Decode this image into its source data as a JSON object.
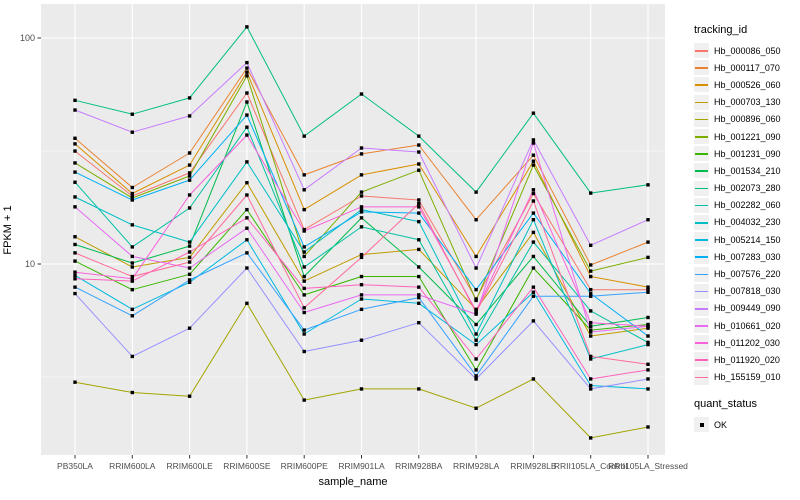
{
  "figure": {
    "y_axis": {
      "title": "FPKM + 1",
      "tick_labels": [
        "100",
        "10"
      ],
      "tick_values": [
        100,
        10
      ]
    },
    "x_axis": {
      "title": "sample_name"
    },
    "legend": {
      "tracking_title": "tracking_id",
      "quant_title": "quant_status",
      "quant_items": [
        {
          "label": "OK",
          "shape": "black-square"
        }
      ]
    },
    "colors": {
      "panel_bg": "#EBEBEB",
      "grid": "#FFFFFF",
      "tick_text": "#4D4D4D",
      "axis_text": "#000000",
      "point": "#000000",
      "legend_key_bg": "#F0F0F0"
    }
  },
  "chart_data": {
    "type": "line",
    "title": "",
    "xlabel": "sample_name",
    "ylabel": "FPKM + 1",
    "y_scale": "log10",
    "ylim": [
      1.4,
      135
    ],
    "y_major_ticks": [
      10,
      100
    ],
    "y_minor_ticks": [
      3.162,
      31.62
    ],
    "grid": true,
    "legend_position": "right",
    "point_shape": "black-square",
    "categories": [
      "PB350LA",
      "RRIM600LA",
      "RRIM600LE",
      "RRIM600SE",
      "RRIM600PE",
      "RRIM901LA",
      "RRIM928BA",
      "RRIM928LA",
      "RRIM928LB",
      "RRII105LA_Control",
      "RRII105LA_Stressed"
    ],
    "series": [
      {
        "name": "Hb_000086_050",
        "color": "#F8766D",
        "values": [
          31.6,
          20.0,
          25.3,
          57.1,
          14.2,
          20.0,
          19.2,
          7.0,
          20.5,
          7.7,
          7.7
        ]
      },
      {
        "name": "Hb_000117_070",
        "color": "#EA8331",
        "values": [
          36.0,
          21.8,
          31.0,
          73.6,
          24.8,
          30.7,
          33.6,
          15.7,
          30.3,
          9.9,
          12.5
        ]
      },
      {
        "name": "Hb_000526_060",
        "color": "#D89000",
        "values": [
          34.0,
          20.5,
          27.4,
          70.6,
          17.4,
          24.8,
          27.7,
          10.8,
          28.5,
          8.8,
          7.9
        ]
      },
      {
        "name": "Hb_000703_130",
        "color": "#C09B00",
        "values": [
          13.2,
          9.7,
          10.7,
          22.9,
          8.4,
          11.0,
          11.6,
          6.3,
          13.8,
          4.8,
          5.2
        ]
      },
      {
        "name": "Hb_000896_060",
        "color": "#A3A500",
        "values": [
          3.0,
          2.7,
          2.6,
          6.7,
          2.5,
          2.8,
          2.8,
          2.3,
          3.1,
          1.7,
          1.9
        ]
      },
      {
        "name": "Hb_001221_090",
        "color": "#7CAE00",
        "values": [
          28.0,
          19.6,
          24.5,
          68.0,
          10.8,
          20.8,
          26.0,
          6.9,
          27.4,
          9.3,
          10.7
        ]
      },
      {
        "name": "Hb_001231_090",
        "color": "#39B600",
        "values": [
          10.3,
          7.7,
          9.0,
          17.4,
          7.3,
          8.8,
          8.8,
          3.4,
          9.6,
          5.1,
          5.4
        ]
      },
      {
        "name": "Hb_001534_210",
        "color": "#00BB4E",
        "values": [
          12.2,
          10.1,
          12.0,
          52.1,
          8.8,
          16.0,
          9.7,
          5.4,
          10.8,
          5.3,
          5.8
        ]
      },
      {
        "name": "Hb_002073_280",
        "color": "#00BF7D",
        "values": [
          53.0,
          46.0,
          54.3,
          112.0,
          36.8,
          56.5,
          36.8,
          20.8,
          46.5,
          20.6,
          22.4
        ]
      },
      {
        "name": "Hb_002282_060",
        "color": "#00C1A3",
        "values": [
          23.0,
          11.9,
          17.7,
          40.3,
          9.7,
          14.6,
          12.8,
          4.6,
          12.5,
          6.2,
          4.5
        ]
      },
      {
        "name": "Hb_004032_230",
        "color": "#00BFC4",
        "values": [
          19.8,
          14.9,
          12.5,
          28.3,
          11.3,
          17.4,
          15.4,
          4.9,
          15.7,
          3.8,
          4.4
        ]
      },
      {
        "name": "Hb_005214_150",
        "color": "#00BADE",
        "values": [
          8.9,
          6.3,
          8.3,
          12.8,
          4.9,
          7.0,
          6.7,
          4.4,
          7.5,
          2.9,
          2.8
        ]
      },
      {
        "name": "Hb_007283_030",
        "color": "#00B0F6",
        "values": [
          25.5,
          19.2,
          23.5,
          45.6,
          11.9,
          17.0,
          16.8,
          7.7,
          16.8,
          7.4,
          4.8
        ]
      },
      {
        "name": "Hb_007576_220",
        "color": "#35A2FF",
        "values": [
          7.9,
          5.9,
          8.5,
          11.2,
          5.1,
          6.3,
          7.1,
          3.2,
          7.2,
          7.2,
          7.5
        ]
      },
      {
        "name": "Hb_007818_030",
        "color": "#9590FF",
        "values": [
          7.4,
          3.9,
          5.2,
          9.6,
          4.1,
          4.6,
          5.5,
          3.1,
          5.6,
          2.8,
          3.1
        ]
      },
      {
        "name": "Hb_009449_090",
        "color": "#C77CFF",
        "values": [
          48.0,
          38.3,
          45.2,
          77.8,
          21.3,
          32.6,
          31.3,
          9.6,
          35.4,
          12.1,
          15.7
        ]
      },
      {
        "name": "Hb_010661_020",
        "color": "#E76BF3",
        "values": [
          17.9,
          10.8,
          9.6,
          14.4,
          6.1,
          7.3,
          7.3,
          6.0,
          34.3,
          5.0,
          5.3
        ]
      },
      {
        "name": "Hb_011202_030",
        "color": "#FA62DB",
        "values": [
          9.2,
          8.6,
          20.2,
          37.2,
          14.0,
          17.9,
          17.9,
          6.2,
          21.3,
          5.5,
          5.3
        ]
      },
      {
        "name": "Hb_011920_020",
        "color": "#FF62BC",
        "values": [
          8.6,
          8.4,
          11.3,
          16.0,
          7.8,
          8.1,
          7.9,
          3.8,
          7.9,
          3.1,
          3.4
        ]
      },
      {
        "name": "Hb_155159_010",
        "color": "#FF6A98",
        "values": [
          11.2,
          8.8,
          10.2,
          20.2,
          6.4,
          10.7,
          18.5,
          6.1,
          19.0,
          3.9,
          3.6
        ]
      }
    ]
  }
}
